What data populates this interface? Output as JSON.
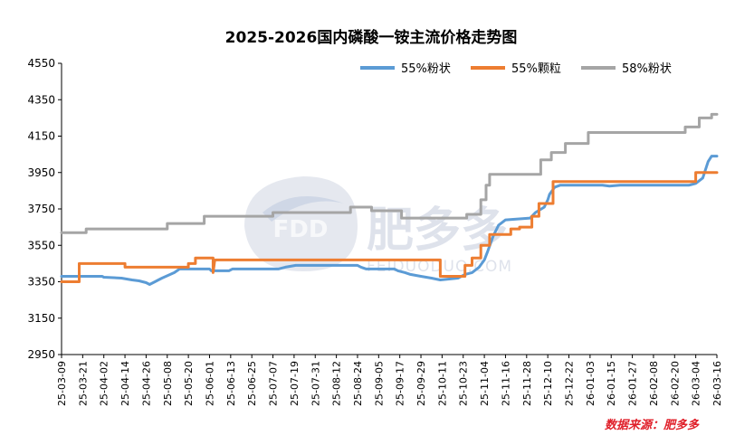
{
  "chart_data": {
    "type": "line",
    "title": "2025-2026国内磷酸一铵主流价格走势图",
    "source_label": "数据来源：肥多多",
    "watermark": {
      "brand": "肥多多",
      "logo": "FDD",
      "url": "FEIDUODUO.COM"
    },
    "ylim": [
      2950,
      4550
    ],
    "yticks": [
      2950,
      3150,
      3350,
      3550,
      3750,
      3950,
      4150,
      4350,
      4550
    ],
    "xlim": [
      "25-03-09",
      "26-03-16"
    ],
    "xticks": [
      "25-03-09",
      "25-03-21",
      "25-04-02",
      "25-04-14",
      "25-04-26",
      "25-05-08",
      "25-05-20",
      "25-06-01",
      "25-06-13",
      "25-06-25",
      "25-07-07",
      "25-07-19",
      "25-07-31",
      "25-08-12",
      "25-08-24",
      "25-09-05",
      "25-09-17",
      "25-09-29",
      "25-10-11",
      "25-10-23",
      "25-11-04",
      "25-11-16",
      "25-11-28",
      "25-12-10",
      "25-12-22",
      "26-01-03",
      "26-01-15",
      "26-01-27",
      "26-02-08",
      "26-02-20",
      "26-03-04",
      "26-03-16"
    ],
    "legend_position": "top-right",
    "grid": false,
    "series": [
      {
        "name": "55%粉状",
        "color": "#5b9bd5",
        "points": [
          [
            "25-03-09",
            3380
          ],
          [
            "25-04-01",
            3380
          ],
          [
            "25-04-02",
            3375
          ],
          [
            "25-04-12",
            3370
          ],
          [
            "25-04-18",
            3360
          ],
          [
            "25-04-22",
            3355
          ],
          [
            "25-04-26",
            3345
          ],
          [
            "25-04-28",
            3335
          ],
          [
            "25-05-01",
            3350
          ],
          [
            "25-05-03",
            3360
          ],
          [
            "25-05-05",
            3370
          ],
          [
            "25-05-12",
            3400
          ],
          [
            "25-05-15",
            3420
          ],
          [
            "25-06-01",
            3420
          ],
          [
            "25-06-02",
            3410
          ],
          [
            "25-06-12",
            3410
          ],
          [
            "25-06-14",
            3420
          ],
          [
            "25-07-10",
            3420
          ],
          [
            "25-07-14",
            3430
          ],
          [
            "25-07-20",
            3440
          ],
          [
            "25-08-24",
            3440
          ],
          [
            "25-08-26",
            3430
          ],
          [
            "25-08-29",
            3420
          ],
          [
            "25-09-14",
            3420
          ],
          [
            "25-09-16",
            3410
          ],
          [
            "25-09-20",
            3400
          ],
          [
            "25-09-23",
            3390
          ],
          [
            "25-09-29",
            3380
          ],
          [
            "25-10-05",
            3370
          ],
          [
            "25-10-10",
            3360
          ],
          [
            "25-10-20",
            3370
          ],
          [
            "25-10-24",
            3390
          ],
          [
            "25-10-28",
            3400
          ],
          [
            "25-11-01",
            3430
          ],
          [
            "25-11-04",
            3470
          ],
          [
            "25-11-06",
            3520
          ],
          [
            "25-11-09",
            3600
          ],
          [
            "25-11-12",
            3660
          ],
          [
            "25-11-16",
            3690
          ],
          [
            "25-11-30",
            3700
          ],
          [
            "25-12-03",
            3730
          ],
          [
            "25-12-08",
            3760
          ],
          [
            "25-12-10",
            3800
          ],
          [
            "25-12-11",
            3830
          ],
          [
            "25-12-14",
            3870
          ],
          [
            "25-12-17",
            3880
          ],
          [
            "26-01-10",
            3880
          ],
          [
            "26-01-14",
            3875
          ],
          [
            "26-01-20",
            3880
          ],
          [
            "26-02-28",
            3880
          ],
          [
            "26-03-04",
            3890
          ],
          [
            "26-03-08",
            3920
          ],
          [
            "26-03-11",
            4010
          ],
          [
            "26-03-13",
            4040
          ],
          [
            "26-03-16",
            4040
          ]
        ]
      },
      {
        "name": "55%颗粒",
        "color": "#ed7d31",
        "points": [
          [
            "25-03-09",
            3350
          ],
          [
            "25-03-19",
            3350
          ],
          [
            "25-03-19",
            3450
          ],
          [
            "25-04-14",
            3450
          ],
          [
            "25-04-14",
            3430
          ],
          [
            "25-05-20",
            3430
          ],
          [
            "25-05-20",
            3450
          ],
          [
            "25-05-24",
            3450
          ],
          [
            "25-05-24",
            3480
          ],
          [
            "25-06-03",
            3480
          ],
          [
            "25-06-03",
            3400
          ],
          [
            "25-06-04",
            3470
          ],
          [
            "25-10-10",
            3470
          ],
          [
            "25-10-10",
            3380
          ],
          [
            "25-10-24",
            3380
          ],
          [
            "25-10-24",
            3440
          ],
          [
            "25-10-28",
            3440
          ],
          [
            "25-10-28",
            3480
          ],
          [
            "25-11-02",
            3480
          ],
          [
            "25-11-02",
            3550
          ],
          [
            "25-11-07",
            3550
          ],
          [
            "25-11-07",
            3610
          ],
          [
            "25-11-19",
            3610
          ],
          [
            "25-11-19",
            3640
          ],
          [
            "25-11-24",
            3640
          ],
          [
            "25-11-24",
            3650
          ],
          [
            "25-12-01",
            3650
          ],
          [
            "25-12-01",
            3710
          ],
          [
            "25-12-05",
            3710
          ],
          [
            "25-12-05",
            3780
          ],
          [
            "25-12-13",
            3780
          ],
          [
            "25-12-13",
            3900
          ],
          [
            "26-03-04",
            3900
          ],
          [
            "26-03-04",
            3950
          ],
          [
            "26-03-16",
            3950
          ]
        ]
      },
      {
        "name": "58%粉状",
        "color": "#a5a5a5",
        "points": [
          [
            "25-03-09",
            3620
          ],
          [
            "25-03-23",
            3620
          ],
          [
            "25-03-23",
            3640
          ],
          [
            "25-05-08",
            3640
          ],
          [
            "25-05-08",
            3670
          ],
          [
            "25-05-29",
            3670
          ],
          [
            "25-05-29",
            3710
          ],
          [
            "25-07-07",
            3710
          ],
          [
            "25-07-07",
            3730
          ],
          [
            "25-08-20",
            3730
          ],
          [
            "25-08-20",
            3760
          ],
          [
            "25-09-01",
            3760
          ],
          [
            "25-09-01",
            3740
          ],
          [
            "25-09-18",
            3740
          ],
          [
            "25-09-18",
            3700
          ],
          [
            "25-10-25",
            3700
          ],
          [
            "25-10-25",
            3720
          ],
          [
            "25-11-02",
            3720
          ],
          [
            "25-11-02",
            3800
          ],
          [
            "25-11-05",
            3800
          ],
          [
            "25-11-05",
            3880
          ],
          [
            "25-11-07",
            3880
          ],
          [
            "25-11-07",
            3940
          ],
          [
            "25-12-06",
            3940
          ],
          [
            "25-12-06",
            4020
          ],
          [
            "25-12-12",
            4020
          ],
          [
            "25-12-12",
            4060
          ],
          [
            "25-12-20",
            4060
          ],
          [
            "25-12-20",
            4110
          ],
          [
            "26-01-02",
            4110
          ],
          [
            "26-01-02",
            4170
          ],
          [
            "26-02-26",
            4170
          ],
          [
            "26-02-26",
            4200
          ],
          [
            "26-03-06",
            4200
          ],
          [
            "26-03-06",
            4250
          ],
          [
            "26-03-13",
            4250
          ],
          [
            "26-03-13",
            4270
          ],
          [
            "26-03-16",
            4270
          ]
        ]
      }
    ]
  }
}
